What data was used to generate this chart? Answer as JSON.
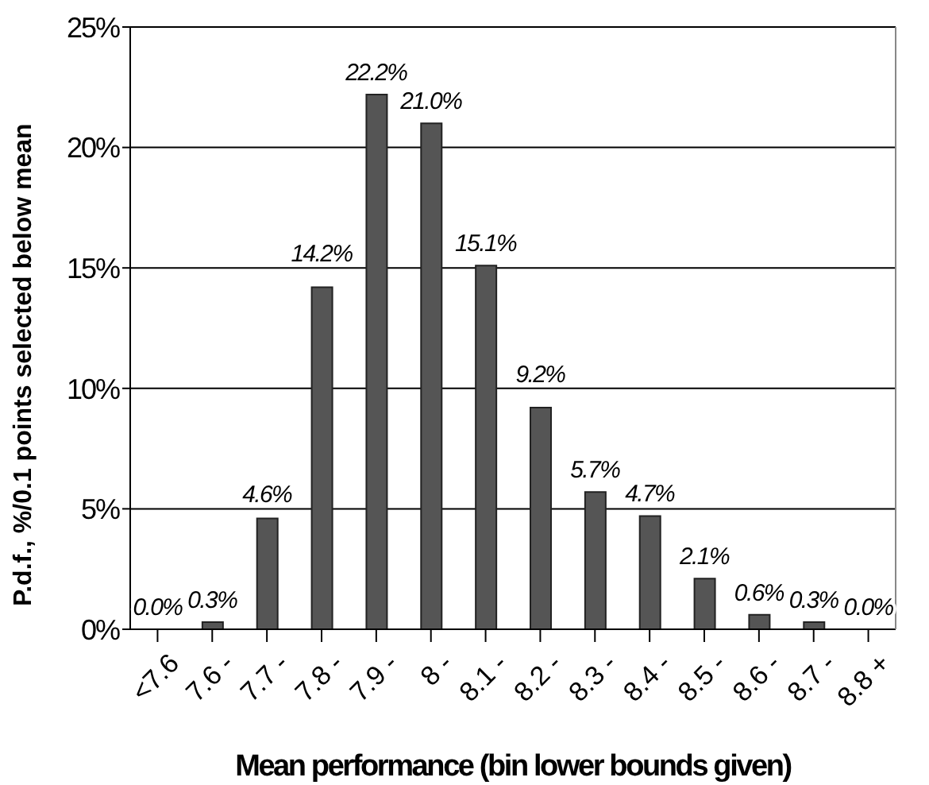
{
  "chart_data": {
    "type": "bar",
    "xlabel": "Mean performance (bin lower bounds given)",
    "ylabel": "P.d.f., %/0.1 points selected below mean",
    "categories": [
      "<7.6",
      "7.6 -",
      "7.7 -",
      "7.8 -",
      "7.9 -",
      "8 -",
      "8.1 -",
      "8.2 -",
      "8.3 -",
      "8.4 -",
      "8.5 -",
      "8.6 -",
      "8.7 -",
      "8.8 +"
    ],
    "values": [
      0.0,
      0.3,
      4.6,
      14.2,
      22.2,
      21.0,
      15.1,
      9.2,
      5.7,
      4.7,
      2.1,
      0.6,
      0.3,
      0.0
    ],
    "value_labels": [
      "0.0%",
      "0.3%",
      "4.6%",
      "14.2%",
      "22.2%",
      "21.0%",
      "15.1%",
      "9.2%",
      "5.7%",
      "4.7%",
      "2.1%",
      "0.6%",
      "0.3%",
      "0.0%"
    ],
    "color": "#555555",
    "ylim": [
      0,
      25
    ],
    "yticks": [
      {
        "value": 0,
        "label": "0%"
      },
      {
        "value": 5,
        "label": "5%"
      },
      {
        "value": 10,
        "label": "10%"
      },
      {
        "value": 15,
        "label": "15%"
      },
      {
        "value": 20,
        "label": "20%"
      },
      {
        "value": 25,
        "label": "25%"
      }
    ],
    "grid": "y",
    "legend": false
  }
}
